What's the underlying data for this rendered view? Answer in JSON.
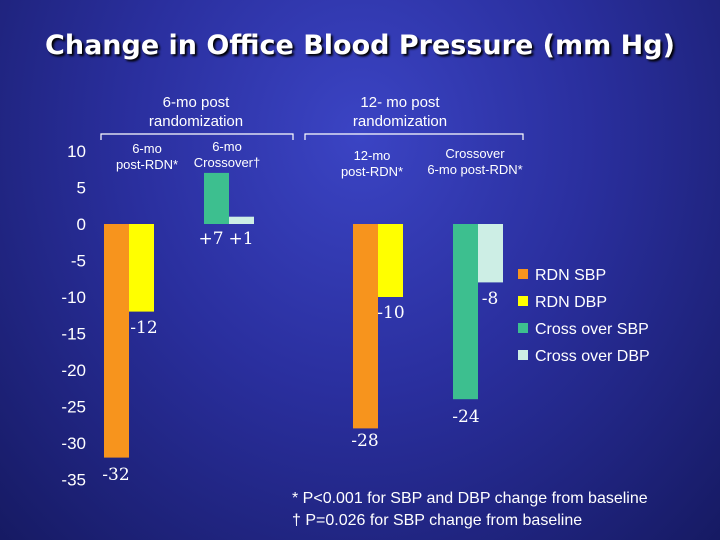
{
  "title": "Change in Office Blood Pressure (mm Hg)",
  "chart_data": {
    "type": "bar",
    "ylim": [
      -35,
      10
    ],
    "yticks": [
      10,
      5,
      0,
      -5,
      -10,
      -15,
      -20,
      -25,
      -30,
      -35
    ],
    "series": [
      {
        "name": "RDN SBP",
        "color": "#f7941d"
      },
      {
        "name": "RDN DBP",
        "color": "#ffff00"
      },
      {
        "name": "Cross over SBP",
        "color": "#3dbf8f"
      },
      {
        "name": "Cross over DBP",
        "color": "#cdeee5"
      }
    ],
    "group_headers": [
      "6-mo post\nrandomization",
      "12- mo post\nrandomization"
    ],
    "groups": [
      {
        "label": "6-mo\npost-RDN*",
        "bars": [
          {
            "series": 0,
            "value": -32,
            "label": "-32"
          },
          {
            "series": 1,
            "value": -12,
            "label": "-12"
          }
        ]
      },
      {
        "label": "6-mo\nCrossover†",
        "bars": [
          {
            "series": 2,
            "value": 7,
            "label": "+7"
          },
          {
            "series": 3,
            "value": 1,
            "label": "+1"
          }
        ]
      },
      {
        "label": "12-mo\npost-RDN*",
        "bars": [
          {
            "series": 0,
            "value": -28,
            "label": "-28"
          },
          {
            "series": 1,
            "value": -10,
            "label": "-10"
          }
        ]
      },
      {
        "label": "Crossover\n6-mo post-RDN*",
        "bars": [
          {
            "series": 2,
            "value": -24,
            "label": "-24"
          },
          {
            "series": 3,
            "value": -8,
            "label": "-8"
          }
        ]
      }
    ]
  },
  "footnotes": [
    "*  P<0.001 for SBP and DBP change from baseline",
    "† P=0.026 for SBP change from baseline"
  ]
}
